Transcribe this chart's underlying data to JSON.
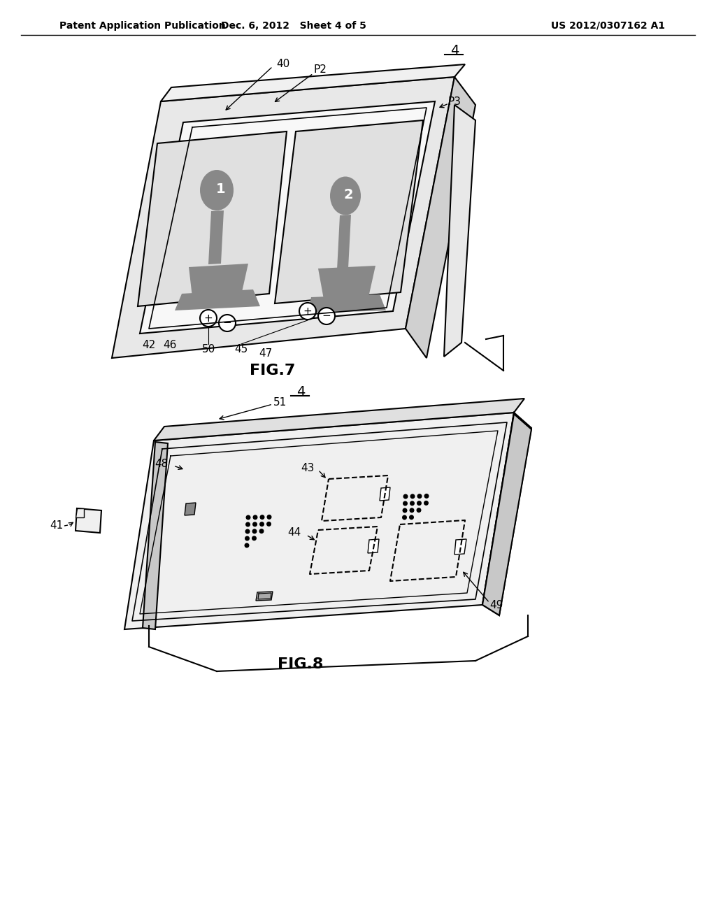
{
  "background_color": "#ffffff",
  "line_color": "#000000",
  "header_left": "Patent Application Publication",
  "header_mid": "Dec. 6, 2012   Sheet 4 of 5",
  "header_right": "US 2012/0307162 A1",
  "fig7_label": "FIG.7",
  "fig8_label": "FIG.8",
  "label_4a": "4",
  "label_4b": "4",
  "label_40": "40",
  "label_42": "42",
  "label_45": "45",
  "label_46": "46",
  "label_47": "47",
  "label_50": "50",
  "label_P2": "P2",
  "label_P3": "P3",
  "label_41": "41",
  "label_43": "43",
  "label_44": "44",
  "label_48": "48",
  "label_49": "49",
  "label_51": "51"
}
